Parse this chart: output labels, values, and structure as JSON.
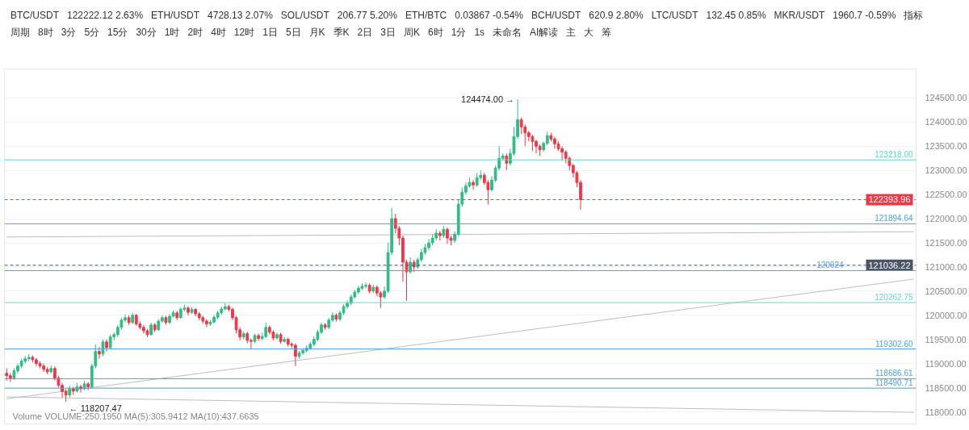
{
  "chart_data": {
    "type": "candlestick",
    "categories": [
      null,
      null,
      null,
      null,
      null,
      null,
      null,
      null,
      null,
      null,
      null,
      null,
      null,
      null,
      null,
      null,
      null,
      null,
      null,
      null,
      null,
      null,
      null,
      null,
      null,
      null,
      null,
      null,
      null,
      null,
      null,
      null,
      null,
      null,
      null,
      null,
      null,
      null,
      null,
      null,
      null,
      null,
      null,
      null,
      null,
      null,
      null,
      null,
      null,
      null,
      null,
      null,
      null,
      null,
      null,
      null,
      null,
      null,
      null,
      null,
      null,
      null,
      null,
      null,
      null,
      null,
      null,
      null,
      null,
      null,
      null,
      null,
      null,
      null,
      null,
      null,
      null,
      null,
      null,
      null,
      null,
      null,
      null,
      null,
      null,
      null,
      null,
      null,
      null,
      null,
      null,
      null,
      null,
      null,
      null,
      null,
      null,
      null,
      null,
      null,
      null,
      null,
      null,
      null,
      null,
      null,
      null,
      null,
      null,
      null,
      null,
      null,
      null,
      null,
      null,
      null,
      null,
      null,
      null,
      null,
      null,
      null,
      null,
      null,
      null,
      null,
      null,
      null,
      null,
      null,
      null,
      null,
      null,
      null,
      null,
      null,
      null,
      null,
      null,
      null,
      null,
      null,
      null,
      null,
      null,
      null,
      null,
      null,
      null,
      null,
      null,
      null,
      null,
      null,
      null,
      null,
      null,
      null,
      null,
      null,
      null,
      null,
      null,
      null,
      null,
      null,
      null,
      null,
      null,
      null,
      null,
      null,
      null,
      null,
      null,
      null,
      null,
      null,
      null,
      null,
      null,
      null,
      null,
      null,
      null,
      null,
      null,
      null,
      null,
      null,
      null,
      null,
      null,
      null,
      null,
      null,
      null,
      null,
      null,
      null,
      null,
      null,
      null,
      null,
      null,
      null,
      null,
      null,
      null,
      null,
      null,
      null,
      null,
      null,
      null,
      null,
      null,
      null,
      null,
      null,
      null,
      null,
      null,
      null,
      null,
      null,
      null,
      null,
      null,
      null,
      null,
      null,
      null,
      null,
      null,
      null,
      null,
      null,
      null,
      null,
      null,
      null,
      null,
      null,
      null,
      null
    ],
    "ohlc": [
      [
        118800,
        118900,
        118650,
        118750
      ],
      [
        118750,
        118800,
        118620,
        118700
      ],
      [
        118700,
        118900,
        118660,
        118850
      ],
      [
        118850,
        119000,
        118800,
        118950
      ],
      [
        118950,
        119100,
        118900,
        119050
      ],
      [
        119050,
        119160,
        119000,
        119100
      ],
      [
        119100,
        119200,
        119050,
        119130
      ],
      [
        119130,
        119170,
        119020,
        119080
      ],
      [
        119080,
        119120,
        118950,
        119000
      ],
      [
        119000,
        119050,
        118900,
        118950
      ],
      [
        118950,
        119000,
        118830,
        118880
      ],
      [
        118880,
        118930,
        118780,
        118830
      ],
      [
        118830,
        118960,
        118800,
        118900
      ],
      [
        118900,
        118940,
        118650,
        118700
      ],
      [
        118700,
        118750,
        118500,
        118550
      ],
      [
        118550,
        118600,
        118300,
        118420
      ],
      [
        118420,
        118470,
        118207.47,
        118350
      ],
      [
        118350,
        118540,
        118300,
        118480
      ],
      [
        118480,
        118520,
        118350,
        118430
      ],
      [
        118430,
        118600,
        118400,
        118520
      ],
      [
        118520,
        118560,
        118400,
        118480
      ],
      [
        118480,
        118650,
        118450,
        118580
      ],
      [
        118580,
        118620,
        118450,
        118520
      ],
      [
        118520,
        119000,
        118480,
        118950
      ],
      [
        118950,
        119400,
        118900,
        119250
      ],
      [
        119250,
        119350,
        119100,
        119200
      ],
      [
        119200,
        119500,
        119150,
        119450
      ],
      [
        119450,
        119500,
        119250,
        119330
      ],
      [
        119330,
        119600,
        119300,
        119550
      ],
      [
        119550,
        119650,
        119480,
        119600
      ],
      [
        119600,
        119800,
        119550,
        119750
      ],
      [
        119750,
        119950,
        119700,
        119900
      ],
      [
        119900,
        120020,
        119850,
        119950
      ],
      [
        119950,
        120000,
        119800,
        119850
      ],
      [
        119850,
        120050,
        119820,
        120000
      ],
      [
        120000,
        120030,
        119780,
        119820
      ],
      [
        119820,
        119870,
        119700,
        119750
      ],
      [
        119750,
        119800,
        119620,
        119680
      ],
      [
        119680,
        119720,
        119550,
        119600
      ],
      [
        119600,
        119850,
        119580,
        119800
      ],
      [
        119800,
        119840,
        119650,
        119700
      ],
      [
        119700,
        119920,
        119680,
        119880
      ],
      [
        119880,
        120000,
        119850,
        119950
      ],
      [
        119950,
        119990,
        119800,
        119850
      ],
      [
        119850,
        120020,
        119820,
        119980
      ],
      [
        119980,
        120100,
        119950,
        120050
      ],
      [
        120050,
        120090,
        119900,
        119950
      ],
      [
        119950,
        120170,
        119930,
        120120
      ],
      [
        120120,
        120220,
        120080,
        120150
      ],
      [
        120150,
        120190,
        120000,
        120060
      ],
      [
        120060,
        120170,
        120030,
        120120
      ],
      [
        120120,
        120150,
        119980,
        120030
      ],
      [
        120030,
        120070,
        119900,
        119950
      ],
      [
        119950,
        119990,
        119830,
        119880
      ],
      [
        119880,
        119920,
        119750,
        119820
      ],
      [
        119820,
        119900,
        119780,
        119860
      ],
      [
        119860,
        120000,
        119830,
        119960
      ],
      [
        119960,
        120100,
        119920,
        120050
      ],
      [
        120050,
        120180,
        120010,
        120130
      ],
      [
        120130,
        120250,
        120100,
        120180
      ],
      [
        120180,
        120220,
        120080,
        120120
      ],
      [
        120120,
        120160,
        119900,
        119950
      ],
      [
        119950,
        119990,
        119620,
        119700
      ],
      [
        119700,
        119750,
        119480,
        119550
      ],
      [
        119550,
        119670,
        119500,
        119620
      ],
      [
        119620,
        119660,
        119420,
        119480
      ],
      [
        119480,
        119520,
        119300,
        119460
      ],
      [
        119460,
        119620,
        119420,
        119580
      ],
      [
        119580,
        119620,
        119470,
        119520
      ],
      [
        119520,
        119640,
        119480,
        119560
      ],
      [
        119560,
        119850,
        119530,
        119750
      ],
      [
        119750,
        119790,
        119600,
        119650
      ],
      [
        119650,
        119690,
        119480,
        119530
      ],
      [
        119530,
        119640,
        119500,
        119600
      ],
      [
        119600,
        119640,
        119410,
        119460
      ],
      [
        119460,
        119550,
        119430,
        119500
      ],
      [
        119500,
        119540,
        119350,
        119400
      ],
      [
        119400,
        119440,
        119320,
        119380
      ],
      [
        119380,
        119420,
        118950,
        119150
      ],
      [
        119150,
        119260,
        119100,
        119220
      ],
      [
        119220,
        119320,
        119180,
        119270
      ],
      [
        119270,
        119380,
        119230,
        119320
      ],
      [
        119320,
        119450,
        119280,
        119400
      ],
      [
        119400,
        119560,
        119360,
        119500
      ],
      [
        119500,
        119700,
        119460,
        119650
      ],
      [
        119650,
        119850,
        119610,
        119800
      ],
      [
        119800,
        119840,
        119700,
        119750
      ],
      [
        119750,
        119950,
        119710,
        119900
      ],
      [
        119900,
        120060,
        119860,
        120000
      ],
      [
        120000,
        120040,
        119870,
        119920
      ],
      [
        119920,
        120100,
        119880,
        120050
      ],
      [
        120050,
        120230,
        120010,
        120180
      ],
      [
        120180,
        120300,
        120140,
        120250
      ],
      [
        120250,
        120430,
        120210,
        120380
      ],
      [
        120380,
        120530,
        120340,
        120480
      ],
      [
        120480,
        120610,
        120440,
        120560
      ],
      [
        120560,
        120660,
        120520,
        120600
      ],
      [
        120600,
        120680,
        120560,
        120620
      ],
      [
        120620,
        120660,
        120450,
        120500
      ],
      [
        120500,
        120630,
        120460,
        120580
      ],
      [
        120580,
        120620,
        120400,
        120460
      ],
      [
        120460,
        120500,
        120150,
        120380
      ],
      [
        120380,
        120600,
        120340,
        120500
      ],
      [
        120500,
        121500,
        120460,
        121300
      ],
      [
        121300,
        122220,
        121250,
        122000
      ],
      [
        122000,
        122100,
        121700,
        121800
      ],
      [
        121800,
        121850,
        121450,
        121600
      ],
      [
        121600,
        121650,
        120700,
        121100
      ],
      [
        121100,
        121150,
        120300,
        120900
      ],
      [
        120900,
        121200,
        120860,
        121100
      ],
      [
        121100,
        121150,
        120900,
        121000
      ],
      [
        121000,
        121200,
        120960,
        121150
      ],
      [
        121150,
        121380,
        121100,
        121300
      ],
      [
        121300,
        121480,
        121250,
        121400
      ],
      [
        121400,
        121580,
        121350,
        121500
      ],
      [
        121500,
        121680,
        121450,
        121600
      ],
      [
        121600,
        121780,
        121550,
        121700
      ],
      [
        121700,
        121750,
        121550,
        121650
      ],
      [
        121650,
        121850,
        121600,
        121780
      ],
      [
        121780,
        121820,
        121480,
        121600
      ],
      [
        121600,
        121650,
        121450,
        121550
      ],
      [
        121550,
        121740,
        121500,
        121680
      ],
      [
        121680,
        122400,
        121640,
        122300
      ],
      [
        122300,
        122650,
        122250,
        122550
      ],
      [
        122550,
        122750,
        122500,
        122680
      ],
      [
        122680,
        122850,
        122640,
        122750
      ],
      [
        122750,
        122800,
        122600,
        122700
      ],
      [
        122700,
        122950,
        122660,
        122850
      ],
      [
        122850,
        123000,
        122800,
        122900
      ],
      [
        122900,
        122950,
        122700,
        122750
      ],
      [
        122750,
        122800,
        122300,
        122600
      ],
      [
        122600,
        122880,
        122560,
        122800
      ],
      [
        122800,
        123100,
        122760,
        123050
      ],
      [
        123050,
        123500,
        123000,
        123250
      ],
      [
        123250,
        123350,
        123200,
        123300
      ],
      [
        123300,
        123350,
        123000,
        123150
      ],
      [
        123150,
        123450,
        123100,
        123350
      ],
      [
        123350,
        123900,
        123300,
        123700
      ],
      [
        123700,
        124474,
        123650,
        124050
      ],
      [
        124050,
        124100,
        123750,
        123900
      ],
      [
        123900,
        123950,
        123500,
        123780
      ],
      [
        123780,
        123820,
        123600,
        123700
      ],
      [
        123700,
        123740,
        123400,
        123600
      ],
      [
        123600,
        123640,
        123350,
        123500
      ],
      [
        123500,
        123540,
        123300,
        123430
      ],
      [
        123430,
        123600,
        123390,
        123560
      ],
      [
        123560,
        123800,
        123520,
        123720
      ],
      [
        123720,
        123780,
        123600,
        123650
      ],
      [
        123650,
        123700,
        123450,
        123550
      ],
      [
        123550,
        123600,
        123400,
        123450
      ],
      [
        123450,
        123500,
        123200,
        123380
      ],
      [
        123380,
        123420,
        123150,
        123250
      ],
      [
        123250,
        123290,
        123000,
        123100
      ],
      [
        123100,
        123140,
        122850,
        122950
      ],
      [
        122950,
        122990,
        122650,
        122750
      ],
      [
        122750,
        122800,
        122185,
        122393.96
      ],
      null,
      null,
      null,
      null,
      null,
      null,
      null,
      null,
      null,
      null,
      null,
      null,
      null,
      null,
      null,
      null,
      null,
      null,
      null,
      null,
      null,
      null,
      null,
      null,
      null,
      null,
      null,
      null,
      null,
      null,
      null,
      null,
      null,
      null,
      null,
      null,
      null,
      null,
      null,
      null,
      null,
      null,
      null,
      null,
      null,
      null,
      null,
      null,
      null,
      null,
      null,
      null,
      null,
      null,
      null,
      null,
      null,
      null,
      null,
      null,
      null,
      null,
      null,
      null,
      null,
      null,
      null,
      null,
      null,
      null,
      null,
      null,
      null,
      null,
      null,
      null,
      null,
      null,
      null,
      null,
      null,
      null,
      null,
      null,
      null,
      null,
      null,
      null,
      null,
      null
    ],
    "colors": [
      "#f23645",
      "#f23645",
      "#2ebd85",
      "#2ebd85",
      "#2ebd85",
      "#2ebd85",
      "#2ebd85",
      "#f23645",
      "#f23645",
      "#f23645",
      "#f23645",
      "#f23645",
      "#2ebd85",
      "#f23645",
      "#f23645",
      "#f23645",
      "#f23645",
      "#2ebd85",
      "#f23645",
      "#2ebd85",
      "#f23645",
      "#2ebd85",
      "#f23645",
      "#2ebd85",
      "#2ebd85",
      "#f23645",
      "#2ebd85",
      "#f23645",
      "#2ebd85",
      "#2ebd85",
      "#2ebd85",
      "#2ebd85",
      "#2ebd85",
      "#f23645",
      "#2ebd85",
      "#f23645",
      "#f23645",
      "#f23645",
      "#f23645",
      "#2ebd85",
      "#f23645",
      "#2ebd85",
      "#2ebd85",
      "#f23645",
      "#2ebd85",
      "#2ebd85",
      "#f23645",
      "#2ebd85",
      "#2ebd85",
      "#f23645",
      "#2ebd85",
      "#f23645",
      "#f23645",
      "#f23645",
      "#f23645",
      "#2ebd85",
      "#2ebd85",
      "#2ebd85",
      "#2ebd85",
      "#2ebd85",
      "#f23645",
      "#f23645",
      "#f23645",
      "#f23645",
      "#2ebd85",
      "#f23645",
      "#f23645",
      "#2ebd85",
      "#f23645",
      "#2ebd85",
      "#2ebd85",
      "#f23645",
      "#f23645",
      "#2ebd85",
      "#f23645",
      "#2ebd85",
      "#f23645",
      "#f23645",
      "#f23645",
      "#2ebd85",
      "#2ebd85",
      "#2ebd85",
      "#2ebd85",
      "#2ebd85",
      "#2ebd85",
      "#2ebd85",
      "#f23645",
      "#2ebd85",
      "#2ebd85",
      "#f23645",
      "#2ebd85",
      "#2ebd85",
      "#2ebd85",
      "#2ebd85",
      "#2ebd85",
      "#2ebd85",
      "#2ebd85",
      "#2ebd85",
      "#f23645",
      "#2ebd85",
      "#f23645",
      "#f23645",
      "#2ebd85",
      "#2ebd85",
      "#2ebd85",
      "#f23645",
      "#f23645",
      "#f23645",
      "#f23645",
      "#2ebd85",
      "#f23645",
      "#2ebd85",
      "#2ebd85",
      "#2ebd85",
      "#2ebd85",
      "#2ebd85",
      "#2ebd85",
      "#f23645",
      "#2ebd85",
      "#f23645",
      "#f23645",
      "#2ebd85",
      "#2ebd85",
      "#2ebd85",
      "#2ebd85",
      "#2ebd85",
      "#f23645",
      "#2ebd85",
      "#2ebd85",
      "#f23645",
      "#f23645",
      "#2ebd85",
      "#2ebd85",
      "#2ebd85",
      "#2ebd85",
      "#f23645",
      "#2ebd85",
      "#2ebd85",
      "#2ebd85",
      "#f23645",
      "#f23645",
      "#f23645",
      "#f23645",
      "#f23645",
      "#f23645",
      "#2ebd85",
      "#2ebd85",
      "#f23645",
      "#f23645",
      "#f23645",
      "#f23645",
      "#f23645",
      "#f23645",
      "#f23645",
      "#f23645",
      "#f23645",
      null,
      null,
      null,
      null,
      null,
      null,
      null,
      null,
      null,
      null,
      null,
      null,
      null,
      null,
      null,
      null,
      null,
      null,
      null,
      null,
      null,
      null,
      null,
      null,
      null,
      null,
      null,
      null,
      null,
      null,
      null,
      null,
      null,
      null,
      null,
      null,
      null,
      null,
      null,
      null,
      null,
      null,
      null,
      null,
      null,
      null,
      null,
      null,
      null,
      null,
      null,
      null,
      null,
      null,
      null,
      null,
      null,
      null,
      null,
      null,
      null,
      null,
      null,
      null,
      null,
      null,
      null,
      null,
      null,
      null,
      null,
      null,
      null,
      null,
      null,
      null,
      null,
      null,
      null,
      null,
      null,
      null,
      null,
      null,
      null,
      null,
      null,
      null,
      null,
      null
    ],
    "series": [
      {
        "type": "line",
        "color": "#bdbdbd",
        "values": [
          118270,
          null,
          null,
          null,
          null,
          null,
          null,
          null,
          null,
          null,
          null,
          null,
          null,
          null,
          null,
          null,
          null,
          null,
          null,
          null,
          null,
          null,
          null,
          null,
          null,
          null,
          null,
          null,
          null,
          null,
          null,
          null,
          null,
          null,
          null,
          null,
          null,
          null,
          null,
          null,
          null,
          null,
          null,
          null,
          null,
          null,
          null,
          null,
          null,
          null,
          null,
          null,
          null,
          null,
          null,
          null,
          null,
          null,
          null,
          null,
          null,
          null,
          null,
          null,
          null,
          null,
          null,
          null,
          null,
          null,
          null,
          null,
          null,
          null,
          null,
          null,
          null,
          null,
          null,
          null,
          null,
          null,
          null,
          null,
          null,
          null,
          null,
          null,
          null,
          null,
          null,
          null,
          null,
          null,
          null,
          null,
          null,
          null,
          null,
          null,
          null,
          null,
          null,
          null,
          null,
          null,
          null,
          null,
          null,
          null,
          null,
          null,
          null,
          null,
          null,
          null,
          null,
          null,
          null,
          null,
          null,
          null,
          null,
          null,
          null,
          null,
          null,
          null,
          null,
          null,
          null,
          null,
          null,
          null,
          null,
          null,
          null,
          null,
          null,
          null,
          null,
          null,
          null,
          null,
          null,
          null,
          null,
          null,
          null,
          null,
          null,
          null,
          null,
          null,
          null,
          null,
          null,
          null,
          null,
          null,
          null,
          null,
          null,
          null,
          null,
          null,
          null,
          null,
          null,
          null,
          null,
          null,
          null,
          null,
          null,
          null,
          null,
          null,
          null,
          null,
          null,
          null,
          null,
          null,
          null,
          null,
          null,
          null,
          null,
          null,
          null,
          null,
          null,
          null,
          null,
          null,
          null,
          null,
          null,
          null,
          null,
          null,
          null,
          null,
          null,
          null,
          null,
          null,
          null,
          null,
          null,
          null,
          null,
          null,
          null,
          null,
          null,
          null,
          null,
          null,
          null,
          null,
          null,
          null,
          null,
          null,
          null,
          null,
          null,
          null,
          null,
          null,
          null,
          null,
          null,
          null,
          null,
          null,
          null,
          null,
          null,
          null,
          null,
          null,
          null,
          120750
        ]
      },
      {
        "type": "line",
        "color": "#bdbdbd",
        "values": [
          121620,
          null,
          null,
          null,
          null,
          null,
          null,
          null,
          null,
          null,
          null,
          null,
          null,
          null,
          null,
          null,
          null,
          null,
          null,
          null,
          null,
          null,
          null,
          null,
          null,
          null,
          null,
          null,
          null,
          null,
          null,
          null,
          null,
          null,
          null,
          null,
          null,
          null,
          null,
          null,
          null,
          null,
          null,
          null,
          null,
          null,
          null,
          null,
          null,
          null,
          null,
          null,
          null,
          null,
          null,
          null,
          null,
          null,
          null,
          null,
          null,
          null,
          null,
          null,
          null,
          null,
          null,
          null,
          null,
          null,
          null,
          null,
          null,
          null,
          null,
          null,
          null,
          null,
          null,
          null,
          null,
          null,
          null,
          null,
          null,
          null,
          null,
          null,
          null,
          null,
          null,
          null,
          null,
          null,
          null,
          null,
          null,
          null,
          null,
          null,
          null,
          null,
          null,
          null,
          null,
          null,
          null,
          null,
          null,
          null,
          null,
          null,
          null,
          null,
          null,
          null,
          null,
          null,
          null,
          null,
          null,
          null,
          null,
          null,
          null,
          null,
          null,
          null,
          null,
          null,
          null,
          null,
          null,
          null,
          null,
          null,
          null,
          null,
          null,
          null,
          null,
          null,
          null,
          null,
          null,
          null,
          null,
          null,
          null,
          null,
          null,
          null,
          null,
          null,
          null,
          null,
          null,
          null,
          null,
          null,
          null,
          null,
          null,
          null,
          null,
          null,
          null,
          null,
          null,
          null,
          null,
          null,
          null,
          null,
          null,
          null,
          null,
          null,
          null,
          null,
          null,
          null,
          null,
          null,
          null,
          null,
          null,
          null,
          null,
          null,
          null,
          null,
          null,
          null,
          null,
          null,
          null,
          null,
          null,
          null,
          null,
          null,
          null,
          null,
          null,
          null,
          null,
          null,
          null,
          null,
          null,
          null,
          null,
          null,
          null,
          null,
          null,
          null,
          null,
          null,
          null,
          null,
          null,
          null,
          null,
          null,
          null,
          null,
          null,
          null,
          null,
          null,
          null,
          null,
          null,
          null,
          null,
          null,
          null,
          null,
          null,
          null,
          null,
          null,
          null,
          121730
        ]
      },
      {
        "type": "line",
        "color": "#bdbdbd",
        "values": [
          118310,
          null,
          null,
          null,
          null,
          null,
          null,
          null,
          null,
          null,
          null,
          null,
          null,
          null,
          null,
          null,
          null,
          null,
          null,
          null,
          null,
          null,
          null,
          null,
          null,
          null,
          null,
          null,
          null,
          null,
          null,
          null,
          null,
          null,
          null,
          null,
          null,
          null,
          null,
          null,
          null,
          null,
          null,
          null,
          null,
          null,
          null,
          null,
          null,
          null,
          null,
          null,
          null,
          null,
          null,
          null,
          null,
          null,
          null,
          null,
          null,
          null,
          null,
          null,
          null,
          null,
          null,
          null,
          null,
          null,
          null,
          null,
          null,
          null,
          null,
          null,
          null,
          null,
          null,
          null,
          null,
          null,
          null,
          null,
          null,
          null,
          null,
          null,
          null,
          null,
          null,
          null,
          null,
          null,
          null,
          null,
          null,
          null,
          null,
          null,
          null,
          null,
          null,
          null,
          null,
          null,
          null,
          null,
          null,
          null,
          null,
          null,
          null,
          null,
          null,
          null,
          null,
          null,
          null,
          null,
          null,
          null,
          null,
          null,
          null,
          null,
          null,
          null,
          null,
          null,
          null,
          null,
          null,
          null,
          null,
          null,
          null,
          null,
          null,
          null,
          null,
          null,
          null,
          null,
          null,
          null,
          null,
          null,
          null,
          null,
          null,
          null,
          null,
          null,
          null,
          null,
          null,
          null,
          null,
          null,
          null,
          null,
          null,
          null,
          null,
          null,
          null,
          null,
          null,
          null,
          null,
          null,
          null,
          null,
          null,
          null,
          null,
          null,
          null,
          null,
          null,
          null,
          null,
          null,
          null,
          null,
          null,
          null,
          null,
          null,
          null,
          null,
          null,
          null,
          null,
          null,
          null,
          null,
          null,
          null,
          null,
          null,
          null,
          null,
          null,
          null,
          null,
          null,
          null,
          null,
          null,
          null,
          null,
          null,
          null,
          null,
          null,
          null,
          null,
          null,
          null,
          null,
          null,
          null,
          null,
          null,
          null,
          null,
          null,
          null,
          null,
          null,
          null,
          null,
          null,
          null,
          null,
          null,
          null,
          null,
          null,
          null,
          null,
          null,
          null,
          117990
        ]
      }
    ],
    "ylim": [
      117750,
      125100
    ],
    "yticks": [
      {
        "value": 118000,
        "label": "118000.00"
      },
      {
        "value": 118500,
        "label": "118500.00"
      },
      {
        "value": 119000,
        "label": "119000.00"
      },
      {
        "value": 119500,
        "label": "119500.00"
      },
      {
        "value": 120000,
        "label": "120000.00"
      },
      {
        "value": 120500,
        "label": "120500.00"
      },
      {
        "value": 121000,
        "label": "121000.00"
      },
      {
        "value": 121500,
        "label": "121500.00"
      },
      {
        "value": 122000,
        "label": "122000.00"
      },
      {
        "value": 122500,
        "label": "122500.00"
      },
      {
        "value": 123000,
        "label": "123000.00"
      },
      {
        "value": 123500,
        "label": "123500.00"
      },
      {
        "value": 124000,
        "label": "124000.00"
      },
      {
        "value": 124500,
        "label": "124500.00"
      }
    ],
    "tick_labels": "y",
    "grid": "y",
    "ref_lines": [
      {
        "axis": "y",
        "value": 123218.0,
        "label": "123218.00",
        "color": "#5fd8cc",
        "line_style": "solid"
      },
      {
        "axis": "y",
        "value": 122393.96,
        "label": "122393.96",
        "color": "#f23645",
        "line_style": "dashed"
      },
      {
        "axis": "y",
        "value": 121894.64,
        "label": "121894.64",
        "color": "#4aa3f0",
        "line_style": "solid"
      },
      {
        "axis": "y",
        "value": 121036.22,
        "label": "121036.22",
        "color": "#4a5568",
        "line_style": "dashed"
      },
      {
        "axis": "y",
        "value": 120924,
        "label": "120924",
        "color": "#4aa3f0",
        "line_style": "solid"
      },
      {
        "axis": "y",
        "value": 120262.75,
        "label": "120262.75",
        "color": "#5fd8cc",
        "line_style": "solid"
      },
      {
        "axis": "y",
        "value": 119302.6,
        "label": "119302.60",
        "color": "#4aa3f0",
        "line_style": "solid"
      },
      {
        "axis": "y",
        "value": 118686.61,
        "label": "118686.61",
        "color": "#4aa3f0",
        "line_style": "solid"
      },
      {
        "axis": "y",
        "value": 118490.71,
        "label": "118490.71",
        "color": "#4aa3f0",
        "line_style": "solid"
      }
    ],
    "annotations": [
      "124474.00 →",
      {
        "text": "← 118207.47",
        "y": 118207.47
      },
      "BTC/USDT",
      "122222.12 2.63%",
      "ETH/USDT",
      "4728.13 2.07%",
      "SOL/USDT",
      "206.77 5.20%",
      "ETH/BTC",
      "0.03867 -0.54%",
      "BCH/USDT",
      "620.9 2.80%",
      "LTC/USDT",
      "132.45 0.85%",
      "MKR/USDT",
      "1960.7 -0.59%",
      "指标",
      "周期",
      "8时",
      "3分",
      "5分",
      "15分",
      "30分",
      "1时",
      "2时",
      "4时",
      "12时",
      "1日",
      "5日",
      "月K",
      "季K",
      "2日",
      "3日",
      "周K",
      "6时",
      "1分",
      "1s",
      "未命名",
      "AI解读",
      "主",
      "大",
      "筹",
      "Volume VOLUME:250.1950 MA(5):305.9412 MA(10):437.6635"
    ]
  }
}
